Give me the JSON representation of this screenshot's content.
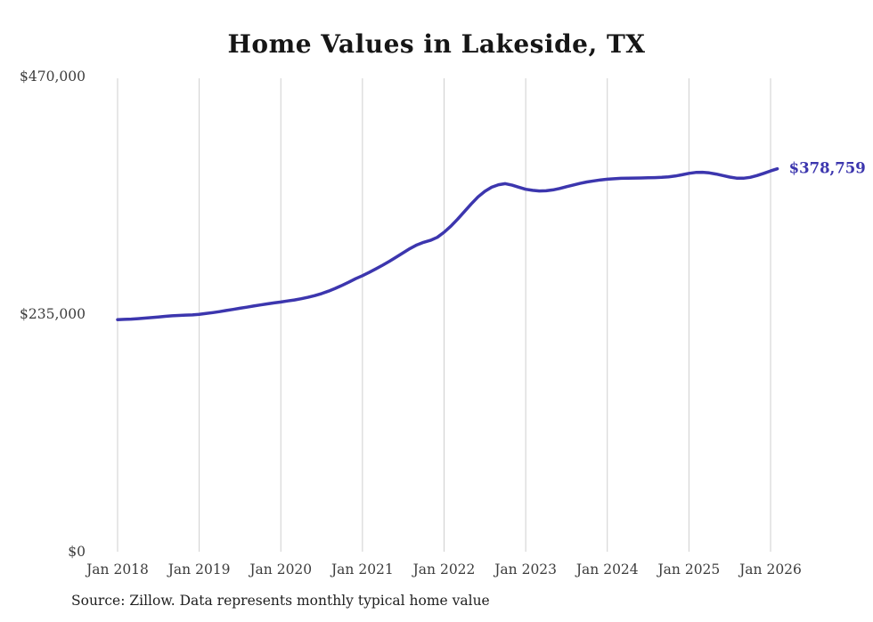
{
  "title": "Home Values in Lakeside, TX",
  "source_note": "Source: Zillow. Data represents monthly typical home value",
  "chart_data": {
    "type": "line",
    "title": "Home Values in Lakeside, TX",
    "series_name": "Monthly typical home value",
    "x_start": "2018-01",
    "x_end": "2026-02",
    "x_frequency": "monthly",
    "x_tick_labels": [
      "Jan 2018",
      "Jan 2019",
      "Jan 2020",
      "Jan 2021",
      "Jan 2022",
      "Jan 2023",
      "Jan 2024",
      "Jan 2025",
      "Jan 2026"
    ],
    "y_ticks": [
      {
        "value": 0,
        "label": "$0"
      },
      {
        "value": 235000,
        "label": "$235,000"
      },
      {
        "value": 470000,
        "label": "$470,000"
      }
    ],
    "ylim": [
      0,
      470000
    ],
    "grid": "vertical-only",
    "legend": "none",
    "end_label": "$378,759",
    "end_value": 378759,
    "line_color": "#3c36ae",
    "grid_color": "#cfcfcf",
    "axis_text_color": "#3d3d3d",
    "values": [
      229500,
      229800,
      230100,
      230500,
      231000,
      231600,
      232200,
      232800,
      233300,
      233700,
      234000,
      234200,
      234800,
      235600,
      236500,
      237500,
      238600,
      239700,
      240800,
      241900,
      243000,
      244100,
      245100,
      246100,
      247000,
      248000,
      249000,
      250200,
      251600,
      253300,
      255300,
      257700,
      260400,
      263400,
      266600,
      270000,
      273000,
      276300,
      279800,
      283500,
      287400,
      291500,
      295700,
      299900,
      303500,
      306000,
      308000,
      311000,
      316000,
      322000,
      329000,
      336500,
      344000,
      351000,
      356500,
      360500,
      363000,
      364000,
      362500,
      360500,
      358500,
      357400,
      356800,
      357000,
      357900,
      359300,
      361000,
      362700,
      364300,
      365700,
      366800,
      367700,
      368400,
      368900,
      369300,
      369500,
      369600,
      369700,
      369800,
      370000,
      370300,
      370800,
      371600,
      372800,
      374200,
      375100,
      375300,
      374700,
      373500,
      372000,
      370500,
      369500,
      369400,
      370300,
      372000,
      374200,
      376600,
      378759
    ]
  }
}
